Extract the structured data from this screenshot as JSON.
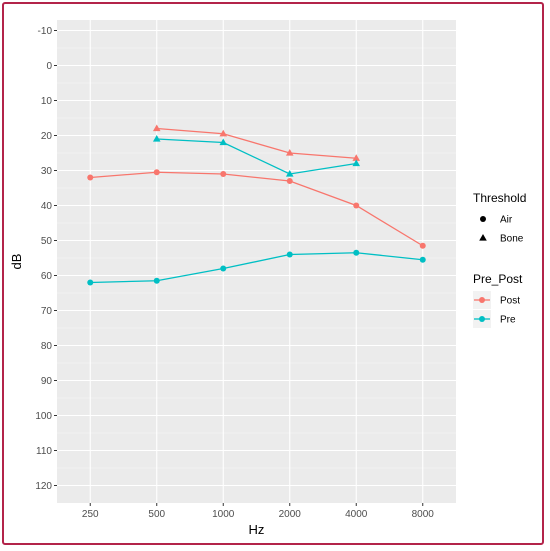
{
  "chart_data": {
    "type": "line",
    "title": "",
    "xlabel": "Hz",
    "ylabel": "dB",
    "x_categories": [
      "250",
      "500",
      "1000",
      "2000",
      "4000",
      "8000"
    ],
    "y_ticks": [
      -10,
      0,
      10,
      20,
      30,
      40,
      50,
      60,
      70,
      80,
      90,
      100,
      110,
      120
    ],
    "ylim": [
      -13,
      125
    ],
    "y_reversed": true,
    "grid": true,
    "legend_position": "right",
    "legends": [
      {
        "title": "Threshold",
        "items": [
          {
            "label": "Air",
            "shape": "circle"
          },
          {
            "label": "Bone",
            "shape": "triangle"
          }
        ]
      },
      {
        "title": "Pre_Post",
        "items": [
          {
            "label": "Post",
            "color": "#f8766d"
          },
          {
            "label": "Pre",
            "color": "#00bfc4"
          }
        ]
      }
    ],
    "series": [
      {
        "name": "Post",
        "threshold": "Air",
        "color": "#f8766d",
        "shape": "circle",
        "x": [
          "250",
          "500",
          "1000",
          "2000",
          "4000",
          "8000"
        ],
        "values": [
          32,
          30.5,
          31,
          33,
          40,
          51.5
        ]
      },
      {
        "name": "Pre",
        "threshold": "Air",
        "color": "#00bfc4",
        "shape": "circle",
        "x": [
          "250",
          "500",
          "1000",
          "2000",
          "4000",
          "8000"
        ],
        "values": [
          62,
          61.5,
          58,
          54,
          53.5,
          55.5
        ]
      },
      {
        "name": "Post",
        "threshold": "Bone",
        "color": "#f8766d",
        "shape": "triangle",
        "x": [
          "500",
          "1000",
          "2000",
          "4000"
        ],
        "values": [
          18,
          19.5,
          25,
          26.5
        ]
      },
      {
        "name": "Pre",
        "threshold": "Bone",
        "color": "#00bfc4",
        "shape": "triangle",
        "x": [
          "500",
          "1000",
          "2000",
          "4000"
        ],
        "values": [
          21,
          22,
          31,
          28
        ]
      }
    ]
  }
}
